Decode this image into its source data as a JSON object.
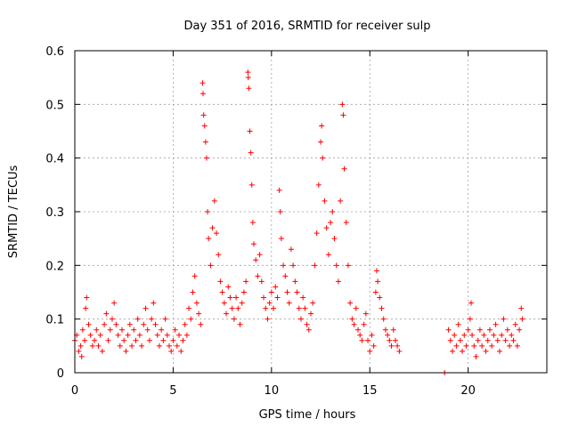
{
  "chart_data": {
    "type": "scatter",
    "title": "Day 351 of 2016, SRMTID for receiver sulp",
    "xlabel": "GPS time / hours",
    "ylabel": "SRMTID / TECUs",
    "xlim": [
      0,
      24
    ],
    "ylim": [
      0,
      0.6
    ],
    "xticks": [
      0,
      5,
      10,
      15,
      20
    ],
    "xtick_labels": [
      "0",
      "5",
      "10",
      "15",
      "20"
    ],
    "yticks": [
      0,
      0.1,
      0.2,
      0.3,
      0.4,
      0.5,
      0.6
    ],
    "ytick_labels": [
      "0",
      "0.1",
      "0.2",
      "0.3",
      "0.4",
      "0.5",
      "0.6"
    ],
    "grid": true,
    "marker": "plus",
    "color": "#ff0000",
    "series": [
      {
        "name": "SRMTID",
        "points": [
          [
            0.0,
            0.06
          ],
          [
            0.1,
            0.07
          ],
          [
            0.2,
            0.04
          ],
          [
            0.3,
            0.05
          ],
          [
            0.35,
            0.03
          ],
          [
            0.4,
            0.08
          ],
          [
            0.5,
            0.06
          ],
          [
            0.55,
            0.12
          ],
          [
            0.6,
            0.14
          ],
          [
            0.7,
            0.09
          ],
          [
            0.8,
            0.07
          ],
          [
            0.9,
            0.05
          ],
          [
            1.0,
            0.06
          ],
          [
            1.1,
            0.08
          ],
          [
            1.2,
            0.05
          ],
          [
            1.3,
            0.07
          ],
          [
            1.4,
            0.04
          ],
          [
            1.5,
            0.09
          ],
          [
            1.6,
            0.11
          ],
          [
            1.7,
            0.06
          ],
          [
            1.8,
            0.08
          ],
          [
            1.9,
            0.1
          ],
          [
            2.0,
            0.13
          ],
          [
            2.1,
            0.09
          ],
          [
            2.2,
            0.07
          ],
          [
            2.3,
            0.05
          ],
          [
            2.4,
            0.08
          ],
          [
            2.5,
            0.06
          ],
          [
            2.6,
            0.04
          ],
          [
            2.7,
            0.07
          ],
          [
            2.8,
            0.09
          ],
          [
            2.9,
            0.05
          ],
          [
            3.0,
            0.08
          ],
          [
            3.1,
            0.06
          ],
          [
            3.2,
            0.1
          ],
          [
            3.3,
            0.07
          ],
          [
            3.4,
            0.05
          ],
          [
            3.5,
            0.09
          ],
          [
            3.6,
            0.12
          ],
          [
            3.7,
            0.08
          ],
          [
            3.8,
            0.06
          ],
          [
            3.9,
            0.1
          ],
          [
            4.0,
            0.13
          ],
          [
            4.1,
            0.09
          ],
          [
            4.2,
            0.07
          ],
          [
            4.3,
            0.05
          ],
          [
            4.4,
            0.08
          ],
          [
            4.5,
            0.06
          ],
          [
            4.6,
            0.1
          ],
          [
            4.7,
            0.07
          ],
          [
            4.8,
            0.05
          ],
          [
            4.9,
            0.04
          ],
          [
            5.0,
            0.06
          ],
          [
            5.1,
            0.08
          ],
          [
            5.2,
            0.05
          ],
          [
            5.3,
            0.07
          ],
          [
            5.4,
            0.04
          ],
          [
            5.5,
            0.06
          ],
          [
            5.6,
            0.09
          ],
          [
            5.7,
            0.07
          ],
          [
            5.8,
            0.12
          ],
          [
            5.9,
            0.1
          ],
          [
            6.0,
            0.15
          ],
          [
            6.1,
            0.18
          ],
          [
            6.2,
            0.13
          ],
          [
            6.3,
            0.11
          ],
          [
            6.4,
            0.09
          ],
          [
            6.5,
            0.54
          ],
          [
            6.52,
            0.52
          ],
          [
            6.55,
            0.48
          ],
          [
            6.6,
            0.46
          ],
          [
            6.65,
            0.43
          ],
          [
            6.7,
            0.4
          ],
          [
            6.75,
            0.3
          ],
          [
            6.8,
            0.25
          ],
          [
            6.9,
            0.2
          ],
          [
            7.0,
            0.27
          ],
          [
            7.1,
            0.32
          ],
          [
            7.2,
            0.26
          ],
          [
            7.3,
            0.22
          ],
          [
            7.4,
            0.17
          ],
          [
            7.5,
            0.15
          ],
          [
            7.6,
            0.13
          ],
          [
            7.7,
            0.11
          ],
          [
            7.8,
            0.16
          ],
          [
            7.9,
            0.14
          ],
          [
            8.0,
            0.12
          ],
          [
            8.1,
            0.1
          ],
          [
            8.2,
            0.14
          ],
          [
            8.3,
            0.12
          ],
          [
            8.4,
            0.09
          ],
          [
            8.5,
            0.13
          ],
          [
            8.6,
            0.15
          ],
          [
            8.7,
            0.17
          ],
          [
            8.8,
            0.56
          ],
          [
            8.82,
            0.55
          ],
          [
            8.85,
            0.53
          ],
          [
            8.9,
            0.45
          ],
          [
            8.95,
            0.41
          ],
          [
            9.0,
            0.35
          ],
          [
            9.05,
            0.28
          ],
          [
            9.1,
            0.24
          ],
          [
            9.2,
            0.21
          ],
          [
            9.3,
            0.18
          ],
          [
            9.4,
            0.22
          ],
          [
            9.5,
            0.17
          ],
          [
            9.6,
            0.14
          ],
          [
            9.7,
            0.12
          ],
          [
            9.8,
            0.1
          ],
          [
            9.9,
            0.13
          ],
          [
            10.0,
            0.15
          ],
          [
            10.1,
            0.12
          ],
          [
            10.2,
            0.16
          ],
          [
            10.3,
            0.14
          ],
          [
            10.4,
            0.34
          ],
          [
            10.45,
            0.3
          ],
          [
            10.5,
            0.25
          ],
          [
            10.6,
            0.2
          ],
          [
            10.7,
            0.18
          ],
          [
            10.8,
            0.15
          ],
          [
            10.9,
            0.13
          ],
          [
            11.0,
            0.23
          ],
          [
            11.1,
            0.2
          ],
          [
            11.2,
            0.17
          ],
          [
            11.3,
            0.15
          ],
          [
            11.4,
            0.12
          ],
          [
            11.5,
            0.1
          ],
          [
            11.6,
            0.14
          ],
          [
            11.7,
            0.12
          ],
          [
            11.8,
            0.09
          ],
          [
            11.9,
            0.08
          ],
          [
            12.0,
            0.11
          ],
          [
            12.1,
            0.13
          ],
          [
            12.2,
            0.2
          ],
          [
            12.3,
            0.26
          ],
          [
            12.4,
            0.35
          ],
          [
            12.5,
            0.43
          ],
          [
            12.55,
            0.46
          ],
          [
            12.6,
            0.4
          ],
          [
            12.7,
            0.32
          ],
          [
            12.8,
            0.27
          ],
          [
            12.9,
            0.22
          ],
          [
            13.0,
            0.28
          ],
          [
            13.1,
            0.3
          ],
          [
            13.2,
            0.25
          ],
          [
            13.3,
            0.2
          ],
          [
            13.4,
            0.17
          ],
          [
            13.5,
            0.32
          ],
          [
            13.6,
            0.5
          ],
          [
            13.65,
            0.48
          ],
          [
            13.7,
            0.38
          ],
          [
            13.8,
            0.28
          ],
          [
            13.9,
            0.2
          ],
          [
            14.0,
            0.13
          ],
          [
            14.1,
            0.1
          ],
          [
            14.2,
            0.09
          ],
          [
            14.3,
            0.12
          ],
          [
            14.4,
            0.08
          ],
          [
            14.5,
            0.07
          ],
          [
            14.6,
            0.06
          ],
          [
            14.7,
            0.09
          ],
          [
            14.8,
            0.11
          ],
          [
            14.9,
            0.06
          ],
          [
            15.0,
            0.04
          ],
          [
            15.1,
            0.07
          ],
          [
            15.2,
            0.05
          ],
          [
            15.3,
            0.15
          ],
          [
            15.35,
            0.19
          ],
          [
            15.4,
            0.17
          ],
          [
            15.5,
            0.14
          ],
          [
            15.6,
            0.12
          ],
          [
            15.7,
            0.1
          ],
          [
            15.8,
            0.08
          ],
          [
            15.9,
            0.07
          ],
          [
            16.0,
            0.06
          ],
          [
            16.1,
            0.05
          ],
          [
            16.2,
            0.08
          ],
          [
            16.3,
            0.06
          ],
          [
            16.4,
            0.05
          ],
          [
            16.5,
            0.04
          ],
          [
            18.8,
            0.0
          ],
          [
            19.0,
            0.08
          ],
          [
            19.1,
            0.06
          ],
          [
            19.2,
            0.04
          ],
          [
            19.3,
            0.07
          ],
          [
            19.4,
            0.05
          ],
          [
            19.5,
            0.09
          ],
          [
            19.6,
            0.06
          ],
          [
            19.7,
            0.04
          ],
          [
            19.8,
            0.07
          ],
          [
            19.9,
            0.05
          ],
          [
            20.0,
            0.08
          ],
          [
            20.1,
            0.1
          ],
          [
            20.15,
            0.13
          ],
          [
            20.2,
            0.07
          ],
          [
            20.3,
            0.05
          ],
          [
            20.4,
            0.03
          ],
          [
            20.5,
            0.06
          ],
          [
            20.6,
            0.08
          ],
          [
            20.7,
            0.05
          ],
          [
            20.8,
            0.07
          ],
          [
            20.9,
            0.04
          ],
          [
            21.0,
            0.06
          ],
          [
            21.1,
            0.08
          ],
          [
            21.2,
            0.05
          ],
          [
            21.3,
            0.07
          ],
          [
            21.4,
            0.09
          ],
          [
            21.5,
            0.06
          ],
          [
            21.6,
            0.04
          ],
          [
            21.7,
            0.07
          ],
          [
            21.8,
            0.1
          ],
          [
            21.9,
            0.06
          ],
          [
            22.0,
            0.08
          ],
          [
            22.1,
            0.05
          ],
          [
            22.2,
            0.07
          ],
          [
            22.3,
            0.06
          ],
          [
            22.4,
            0.09
          ],
          [
            22.5,
            0.05
          ],
          [
            22.6,
            0.08
          ],
          [
            22.7,
            0.12
          ],
          [
            22.75,
            0.1
          ]
        ]
      }
    ]
  }
}
